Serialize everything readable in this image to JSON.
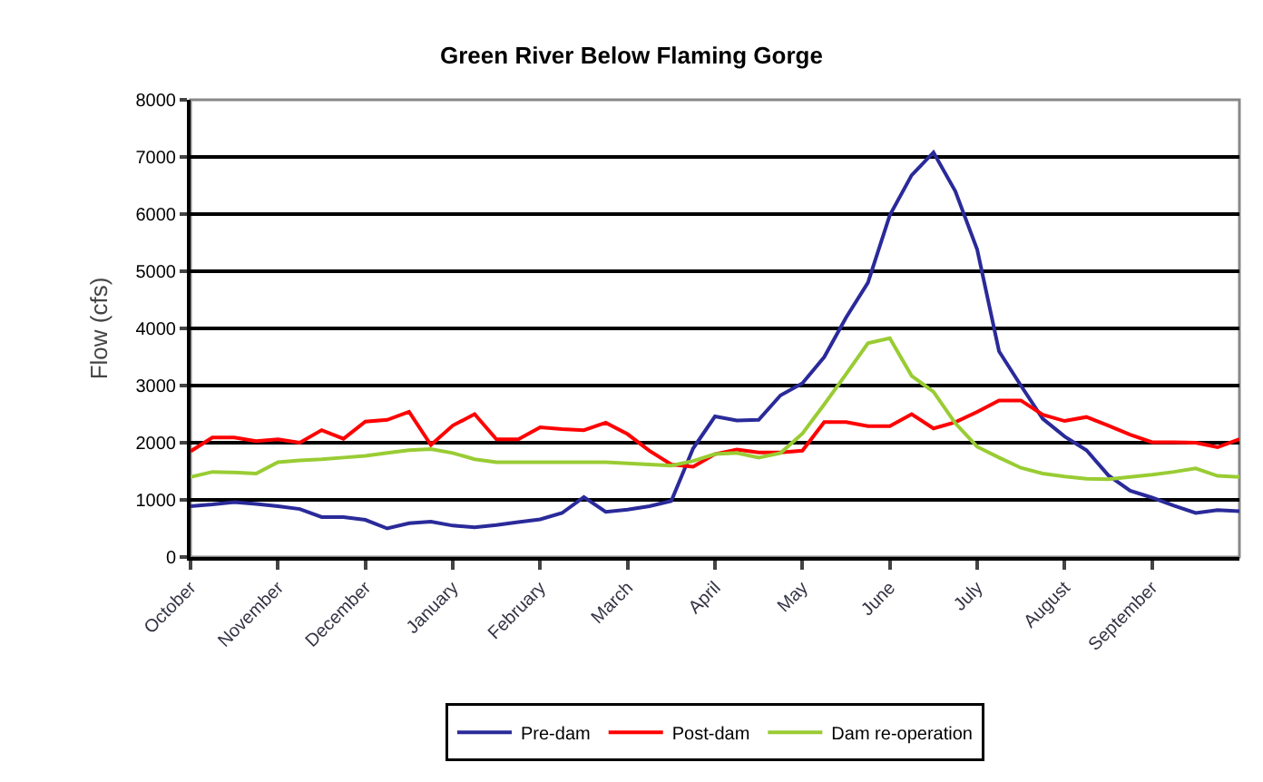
{
  "chart_data": {
    "type": "line",
    "title": "Green River Below Flaming Gorge",
    "ylabel": "Flow (cfs)",
    "categories": [
      "October",
      null,
      null,
      null,
      "November",
      null,
      null,
      null,
      "December",
      null,
      null,
      null,
      "January",
      null,
      null,
      null,
      "February",
      null,
      null,
      null,
      "March",
      null,
      null,
      null,
      "April",
      null,
      null,
      null,
      "May",
      null,
      null,
      null,
      "June",
      null,
      null,
      null,
      "July",
      null,
      null,
      null,
      "August",
      null,
      null,
      null,
      "September",
      null,
      null,
      null,
      null
    ],
    "ylim": [
      0,
      8000
    ],
    "yticks": [
      0,
      1000,
      2000,
      3000,
      4000,
      5000,
      6000,
      7000,
      8000
    ],
    "grid": "y",
    "legend": "bottom",
    "marker": "none",
    "line_style": "solid",
    "series": [
      {
        "name": "Pre-dam",
        "color": "#2a2a9a",
        "values": [
          890,
          920,
          960,
          930,
          890,
          840,
          700,
          700,
          650,
          500,
          590,
          620,
          550,
          520,
          560,
          610,
          660,
          770,
          1050,
          790,
          830,
          890,
          980,
          1900,
          2460,
          2390,
          2400,
          2830,
          3040,
          3500,
          4190,
          4800,
          5980,
          6680,
          7080,
          6400,
          5380,
          3600,
          3000,
          2420,
          2110,
          1870,
          1430,
          1160,
          1040,
          900,
          770,
          820,
          800
        ]
      },
      {
        "name": "Post-dam",
        "color": "#ff0000",
        "values": [
          1850,
          2090,
          2090,
          2030,
          2060,
          2000,
          2220,
          2070,
          2370,
          2400,
          2540,
          1960,
          2300,
          2500,
          2060,
          2060,
          2270,
          2240,
          2220,
          2350,
          2150,
          1860,
          1620,
          1580,
          1800,
          1880,
          1830,
          1830,
          1860,
          2360,
          2360,
          2290,
          2290,
          2500,
          2250,
          2360,
          2540,
          2740,
          2740,
          2490,
          2380,
          2450,
          2300,
          2140,
          2010,
          2010,
          2000,
          1920,
          2060
        ]
      },
      {
        "name": "Dam re-operation",
        "color": "#99cc33",
        "values": [
          1400,
          1490,
          1480,
          1460,
          1660,
          1690,
          1710,
          1740,
          1770,
          1820,
          1870,
          1890,
          1820,
          1710,
          1660,
          1660,
          1660,
          1660,
          1660,
          1660,
          1640,
          1620,
          1600,
          1680,
          1800,
          1820,
          1740,
          1820,
          2160,
          2670,
          3200,
          3740,
          3830,
          3170,
          2890,
          2340,
          1930,
          1740,
          1560,
          1460,
          1410,
          1370,
          1360,
          1400,
          1440,
          1490,
          1550,
          1420,
          1400
        ]
      }
    ]
  }
}
